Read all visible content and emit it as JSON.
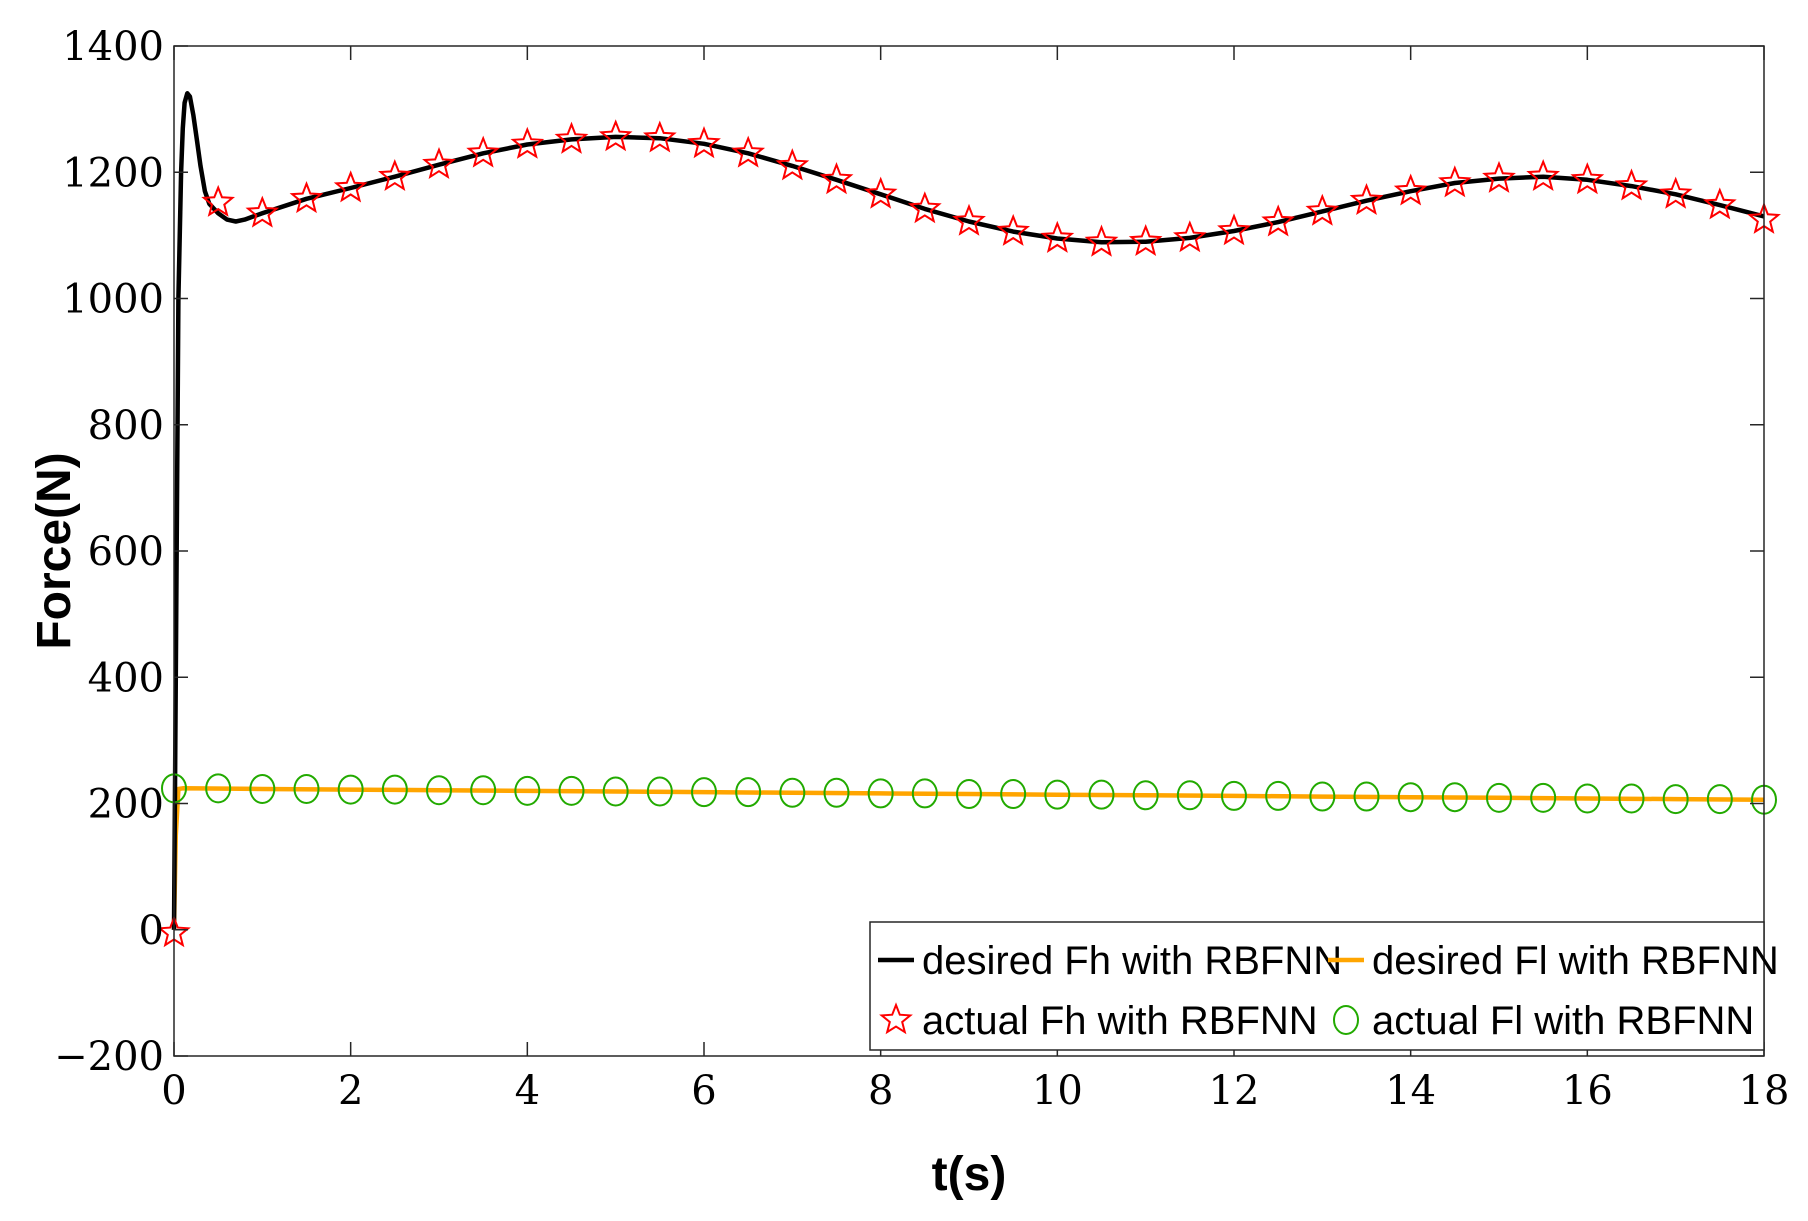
{
  "chart_data": {
    "type": "line",
    "xlabel": "t(s)",
    "ylabel": "Force(N)",
    "xlim": [
      0,
      18
    ],
    "ylim": [
      -200,
      1400
    ],
    "xticks": [
      0,
      2,
      4,
      6,
      8,
      10,
      12,
      14,
      16,
      18
    ],
    "yticks": [
      -200,
      0,
      200,
      400,
      600,
      800,
      1000,
      1200,
      1400
    ],
    "grid": false,
    "legend_position": "bottom-right",
    "colors": {
      "desired_fh": "#000000",
      "desired_fl": "#ffa500",
      "actual_fh": "#ff0000",
      "actual_fl": "#22aa00"
    },
    "series": [
      {
        "name": "desired Fh with RBFNN",
        "style": "line",
        "x": [
          0,
          0.02,
          0.05,
          0.08,
          0.1,
          0.12,
          0.15,
          0.18,
          0.22,
          0.26,
          0.3,
          0.35,
          0.4,
          0.5,
          0.6,
          0.7,
          0.8,
          0.9,
          1.0,
          1.5,
          2.0,
          2.5,
          3.0,
          3.5,
          4.0,
          4.5,
          5.0,
          5.5,
          6.0,
          6.5,
          7.0,
          7.5,
          8.0,
          8.5,
          9.0,
          9.5,
          10.0,
          10.5,
          11.0,
          11.5,
          12.0,
          12.5,
          13.0,
          13.5,
          14.0,
          14.5,
          15.0,
          15.5,
          16.0,
          16.5,
          17.0,
          17.5,
          18.0
        ],
        "values": [
          0,
          400,
          1000,
          1200,
          1270,
          1310,
          1325,
          1320,
          1290,
          1250,
          1210,
          1170,
          1150,
          1135,
          1125,
          1122,
          1125,
          1130,
          1135,
          1158,
          1175,
          1193,
          1212,
          1230,
          1244,
          1252,
          1256,
          1254,
          1245,
          1230,
          1210,
          1188,
          1165,
          1142,
          1122,
          1106,
          1095,
          1089,
          1090,
          1096,
          1107,
          1121,
          1138,
          1155,
          1170,
          1183,
          1190,
          1193,
          1188,
          1178,
          1165,
          1148,
          1130
        ]
      },
      {
        "name": "desired Fl with RBFNN",
        "style": "line",
        "x": [
          0,
          0.02,
          0.05,
          0.1,
          1,
          2,
          3,
          4,
          5,
          6,
          7,
          8,
          9,
          10,
          11,
          12,
          13,
          14,
          15,
          16,
          17,
          18
        ],
        "values": [
          0,
          150,
          223,
          224,
          223,
          222,
          221,
          220,
          219,
          218,
          217,
          216,
          215,
          214,
          213,
          212,
          211,
          210,
          209,
          208,
          207,
          206
        ]
      },
      {
        "name": "actual Fh with RBFNN",
        "style": "markers",
        "marker": "star",
        "x": [
          0,
          0.5,
          1.0,
          1.5,
          2.0,
          2.5,
          3.0,
          3.5,
          4.0,
          4.5,
          5.0,
          5.5,
          6.0,
          6.5,
          7.0,
          7.5,
          8.0,
          8.5,
          9.0,
          9.5,
          10.0,
          10.5,
          11.0,
          11.5,
          12.0,
          12.5,
          13.0,
          13.5,
          14.0,
          14.5,
          15.0,
          15.5,
          16.0,
          16.5,
          17.0,
          17.5,
          18.0
        ],
        "values": [
          -5,
          1152,
          1135,
          1158,
          1175,
          1193,
          1212,
          1230,
          1244,
          1252,
          1256,
          1254,
          1245,
          1230,
          1210,
          1188,
          1165,
          1142,
          1122,
          1106,
          1095,
          1089,
          1090,
          1096,
          1107,
          1121,
          1138,
          1155,
          1170,
          1183,
          1190,
          1193,
          1188,
          1178,
          1165,
          1148,
          1125
        ]
      },
      {
        "name": "actual Fl with RBFNN",
        "style": "markers",
        "marker": "circle",
        "x": [
          0,
          0.5,
          1.0,
          1.5,
          2.0,
          2.5,
          3.0,
          3.5,
          4.0,
          4.5,
          5.0,
          5.5,
          6.0,
          6.5,
          7.0,
          7.5,
          8.0,
          8.5,
          9.0,
          9.5,
          10.0,
          10.5,
          11.0,
          11.5,
          12.0,
          12.5,
          13.0,
          13.5,
          14.0,
          14.5,
          15.0,
          15.5,
          16.0,
          16.5,
          17.0,
          17.5,
          18.0
        ],
        "values": [
          224,
          224,
          223,
          223,
          222,
          222,
          221,
          221,
          220,
          220,
          219,
          219,
          218,
          218,
          217,
          217,
          216,
          216,
          215,
          215,
          214,
          214,
          213,
          213,
          212,
          212,
          211,
          211,
          210,
          210,
          209,
          209,
          208,
          208,
          207,
          207,
          206
        ]
      }
    ],
    "legend": [
      {
        "label": "desired Fh with RBFNN"
      },
      {
        "label": "desired Fl with RBFNN"
      },
      {
        "label": "actual Fh with RBFNN"
      },
      {
        "label": "actual Fl with RBFNN"
      }
    ]
  }
}
